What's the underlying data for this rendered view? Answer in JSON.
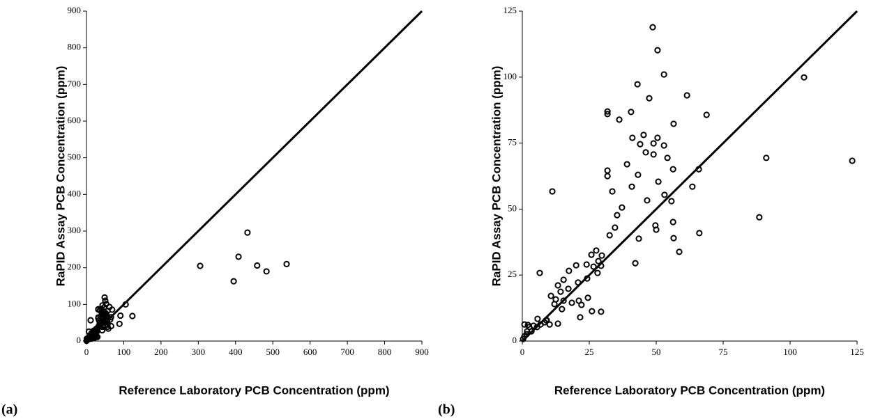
{
  "chart_data": [
    {
      "type": "scatter",
      "panel_label": "(a)",
      "x_label": "Reference Laboratory PCB Concentration (ppm)",
      "y_label": "RaPID Assay PCB Concentration (ppm)",
      "x": [
        48.7,
        50.5,
        105.2,
        52.9,
        68.8,
        43.0,
        31.8,
        31.8,
        40.6,
        36.2,
        47.4,
        61.5,
        56.5,
        41.1,
        45.3,
        50.5,
        44.0,
        49.0,
        52.9,
        46.1,
        49.0,
        54.2,
        91.1,
        39.1,
        56.3,
        65.9,
        31.8,
        31.8,
        43.2,
        50.8,
        40.9,
        63.5,
        33.6,
        53.1,
        55.7,
        46.6,
        11.2,
        37.2,
        35.4,
        88.5,
        56.3,
        49.7,
        50.0,
        34.6,
        32.6,
        66.1,
        56.5,
        43.5,
        58.6,
        42.2,
        123.2,
        6.5,
        27.6,
        29.7,
        25.8,
        28.4,
        29.4,
        26.6,
        28.1,
        24.0,
        20.1,
        24.2,
        24.5,
        17.4,
        20.8,
        15.4,
        21.1,
        13.3,
        14.3,
        17.2,
        10.7,
        12.5,
        15.4,
        18.5,
        22.1,
        26.0,
        29.4,
        21.6,
        14.8,
        12.0,
        13.3,
        10.2,
        8.9,
        5.7,
        6.8,
        4.2,
        2.6,
        3.4,
        1.6,
        0.8,
        0.3,
        0.8,
        2.1,
        1.8,
        5.5,
        8.3,
        9.1,
        305,
        395,
        408,
        432,
        458,
        483,
        537
      ],
      "y": [
        118.9,
        110.2,
        99.9,
        101.0,
        85.7,
        97.3,
        87.0,
        86.0,
        86.8,
        83.9,
        92.0,
        93.1,
        82.3,
        77.0,
        78.1,
        77.0,
        74.6,
        74.9,
        74.1,
        71.5,
        70.7,
        69.4,
        69.4,
        67.0,
        65.1,
        65.1,
        64.6,
        62.5,
        63.0,
        60.4,
        58.5,
        58.5,
        56.7,
        55.4,
        53.0,
        53.3,
        56.7,
        50.6,
        47.7,
        46.9,
        45.1,
        43.8,
        42.2,
        43.0,
        40.1,
        40.9,
        39.0,
        38.8,
        33.8,
        29.5,
        68.3,
        25.8,
        34.3,
        32.4,
        32.7,
        30.3,
        28.5,
        28.2,
        25.8,
        29.0,
        28.7,
        23.7,
        16.4,
        26.6,
        22.2,
        23.2,
        15.3,
        21.1,
        18.7,
        19.8,
        17.1,
        15.8,
        15.3,
        14.5,
        13.7,
        11.3,
        11.1,
        9.0,
        12.1,
        14.0,
        6.6,
        6.3,
        7.9,
        8.4,
        6.3,
        5.8,
        5.3,
        3.7,
        2.6,
        1.8,
        0.8,
        6.3,
        6.1,
        3.7,
        5.3,
        7.1,
        7.9,
        205,
        163,
        230,
        296,
        206,
        190,
        210
      ],
      "xlim": [
        0,
        900
      ],
      "ylim": [
        0,
        900
      ],
      "xticks": [
        0,
        100,
        200,
        300,
        400,
        500,
        600,
        700,
        800,
        900
      ],
      "yticks": [
        0,
        100,
        200,
        300,
        400,
        500,
        600,
        700,
        800,
        900
      ],
      "color": "#000000",
      "reference_line": {
        "x": [
          0,
          900
        ],
        "y": [
          0,
          900
        ]
      }
    },
    {
      "type": "scatter",
      "panel_label": "(b)",
      "x_label": "Reference Laboratory PCB Concentration (ppm)",
      "y_label": "RaPID Assay PCB Concentration (ppm)",
      "x": [
        48.7,
        50.5,
        105.2,
        52.9,
        68.8,
        43.0,
        31.8,
        31.8,
        40.6,
        36.2,
        47.4,
        61.5,
        56.5,
        41.1,
        45.3,
        50.5,
        44.0,
        49.0,
        52.9,
        46.1,
        49.0,
        54.2,
        91.1,
        39.1,
        56.3,
        65.9,
        31.8,
        31.8,
        43.2,
        50.8,
        40.9,
        63.5,
        33.6,
        53.1,
        55.7,
        46.6,
        11.2,
        37.2,
        35.4,
        88.5,
        56.3,
        49.7,
        50.0,
        34.6,
        32.6,
        66.1,
        56.5,
        43.5,
        58.6,
        42.2,
        123.2,
        6.5,
        27.6,
        29.7,
        25.8,
        28.4,
        29.4,
        26.6,
        28.1,
        24.0,
        20.1,
        24.2,
        24.5,
        17.4,
        20.8,
        15.4,
        21.1,
        13.3,
        14.3,
        17.2,
        10.7,
        12.5,
        15.4,
        18.5,
        22.1,
        26.0,
        29.4,
        21.6,
        14.8,
        12.0,
        13.3,
        10.2,
        8.9,
        5.7,
        6.8,
        4.2,
        2.6,
        3.4,
        1.6,
        0.8,
        0.3,
        0.8,
        2.1,
        1.8,
        5.5,
        8.3,
        9.1
      ],
      "y": [
        118.9,
        110.2,
        99.9,
        101.0,
        85.7,
        97.3,
        87.0,
        86.0,
        86.8,
        83.9,
        92.0,
        93.1,
        82.3,
        77.0,
        78.1,
        77.0,
        74.6,
        74.9,
        74.1,
        71.5,
        70.7,
        69.4,
        69.4,
        67.0,
        65.1,
        65.1,
        64.6,
        62.5,
        63.0,
        60.4,
        58.5,
        58.5,
        56.7,
        55.4,
        53.0,
        53.3,
        56.7,
        50.6,
        47.7,
        46.9,
        45.1,
        43.8,
        42.2,
        43.0,
        40.1,
        40.9,
        39.0,
        38.8,
        33.8,
        29.5,
        68.3,
        25.8,
        34.3,
        32.4,
        32.7,
        30.3,
        28.5,
        28.2,
        25.8,
        29.0,
        28.7,
        23.7,
        16.4,
        26.6,
        22.2,
        23.2,
        15.3,
        21.1,
        18.7,
        19.8,
        17.1,
        15.8,
        15.3,
        14.5,
        13.7,
        11.3,
        11.1,
        9.0,
        12.1,
        14.0,
        6.6,
        6.3,
        7.9,
        8.4,
        6.3,
        5.8,
        5.3,
        3.7,
        2.6,
        1.8,
        0.8,
        6.3,
        6.1,
        3.7,
        5.3,
        7.1,
        7.9
      ],
      "xlim": [
        0,
        125
      ],
      "ylim": [
        0,
        125
      ],
      "xticks": [
        0,
        25,
        50,
        75,
        100,
        125
      ],
      "yticks": [
        0,
        25,
        50,
        75,
        100,
        125
      ],
      "color": "#000000",
      "reference_line": {
        "x": [
          0,
          125
        ],
        "y": [
          0,
          125
        ]
      }
    }
  ]
}
